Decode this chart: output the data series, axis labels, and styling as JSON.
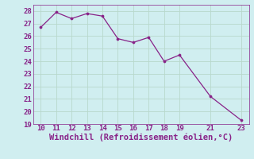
{
  "x": [
    10,
    11,
    12,
    13,
    14,
    15,
    16,
    17,
    18,
    19,
    21,
    23
  ],
  "y": [
    26.7,
    27.9,
    27.4,
    27.8,
    27.6,
    25.8,
    25.5,
    25.9,
    24.0,
    24.5,
    21.2,
    19.3
  ],
  "xlim": [
    9.5,
    23.5
  ],
  "ylim": [
    19,
    28.5
  ],
  "xticks": [
    10,
    11,
    12,
    13,
    14,
    15,
    16,
    17,
    18,
    19,
    21,
    23
  ],
  "yticks": [
    19,
    20,
    21,
    22,
    23,
    24,
    25,
    26,
    27,
    28
  ],
  "xlabel": "Windchill (Refroidissement éolien,°C)",
  "line_color": "#882288",
  "marker_color": "#882288",
  "bg_color": "#d0eef0",
  "grid_color": "#b8d8cc",
  "tick_fontsize": 6.5,
  "label_fontsize": 7.5
}
